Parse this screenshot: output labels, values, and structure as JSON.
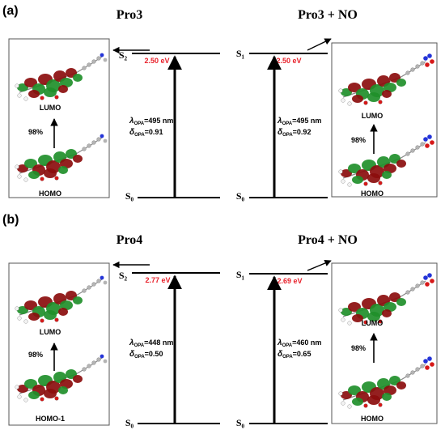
{
  "colors": {
    "energy_label": "#e8202a",
    "orbital_red": "#8b0d0d",
    "orbital_green": "#1f8f2a",
    "atom_red": "#d61818",
    "atom_blue": "#2434d8",
    "atom_grey": "#b4b4b4",
    "atom_white": "#f2f2f2"
  },
  "panels": [
    {
      "letter": "(a)",
      "diagrams": [
        {
          "title_main": "Pro3",
          "title_suffix": "",
          "excited_state_label": "S₂",
          "ground_state_label": "S₀",
          "energy": "2.50 eV",
          "lambda_value": "=495 nm",
          "delta_value": "=0.91",
          "upper_orbital": "LUMO",
          "lower_orbital": "HOMO",
          "transition_percent": "98%",
          "has_no_group": false
        },
        {
          "title_main": "Pro3",
          "title_suffix": " + NO",
          "excited_state_label": "S₁",
          "ground_state_label": "S₀",
          "energy": "2.50 eV",
          "lambda_value": "=495 nm",
          "delta_value": "=0.92",
          "upper_orbital": "LUMO",
          "lower_orbital": "HOMO",
          "transition_percent": "98%",
          "has_no_group": true
        }
      ]
    },
    {
      "letter": "(b)",
      "diagrams": [
        {
          "title_main": "Pro4",
          "title_suffix": "",
          "excited_state_label": "S₂",
          "ground_state_label": "S₀",
          "energy": "2.77 eV",
          "lambda_value": "=448 nm",
          "delta_value": "=0.50",
          "upper_orbital": "LUMO",
          "lower_orbital": "HOMO-1",
          "transition_percent": "98%",
          "has_no_group": false
        },
        {
          "title_main": "Pro4",
          "title_suffix": " + NO",
          "excited_state_label": "S₁",
          "ground_state_label": "S₀",
          "energy": "2.69 eV",
          "lambda_value": "=460 nm",
          "delta_value": "=0.65",
          "upper_orbital": "LUMO",
          "lower_orbital": "HOMO",
          "transition_percent": "98%",
          "has_no_group": true
        }
      ]
    }
  ],
  "symbols": {
    "lambda": "λ",
    "delta": "δ",
    "opa_subscript": "OPA"
  }
}
